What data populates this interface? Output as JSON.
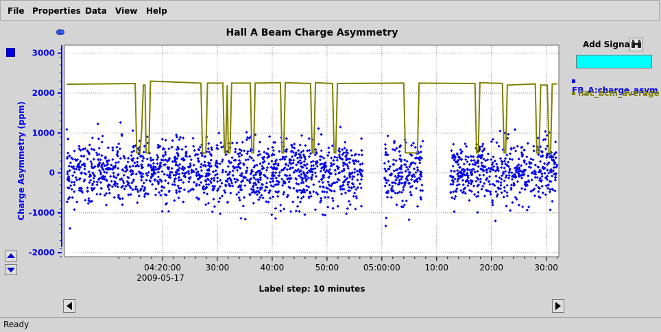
{
  "menu": {
    "file": "File",
    "properties": "Properties",
    "data": "Data",
    "view": "View",
    "help": "Help"
  },
  "chart_data": {
    "type": "scatter",
    "title": "Hall A Beam Charge Asymmetry",
    "xlabel": "Label step: 10 minutes",
    "ylabel": "Charge Asymmetry (ppm)",
    "ylim": [
      -2100,
      3200
    ],
    "xlim": [
      2.1,
      92.3
    ],
    "x_unit": "minutes after 2009-05-17 04:00:00",
    "x_tick_labels": [
      {
        "x": 20,
        "label": "04:20:00",
        "sublabel": "2009-05-17"
      },
      {
        "x": 30,
        "label": "30:00"
      },
      {
        "x": 40,
        "label": "40:00"
      },
      {
        "x": 50,
        "label": "50:00"
      },
      {
        "x": 60,
        "label": "05:00:00"
      },
      {
        "x": 70,
        "label": "10:00"
      },
      {
        "x": 80,
        "label": "20:00"
      },
      {
        "x": 90,
        "label": "30:00"
      }
    ],
    "y_ticks": [
      -2000,
      -1000,
      0,
      1000,
      2000,
      3000
    ],
    "grid": true,
    "series": [
      {
        "name": "FB_A:charge_asym",
        "color": "#0000ee",
        "style": "points",
        "segments": [
          [
            2.5,
            56.5
          ],
          [
            60.5,
            67.5
          ],
          [
            72.5,
            92
          ]
        ],
        "y_mean": 0,
        "y_spread": 400
      },
      {
        "name": "hac_bcm_average",
        "color": "#808000",
        "style": "line",
        "points": [
          [
            2.5,
            2220
          ],
          [
            15.0,
            2240
          ],
          [
            15.3,
            500
          ],
          [
            15.9,
            500
          ],
          [
            16.2,
            1100
          ],
          [
            16.5,
            2200
          ],
          [
            16.8,
            2200
          ],
          [
            17.0,
            500
          ],
          [
            17.5,
            500
          ],
          [
            17.8,
            2300
          ],
          [
            27.0,
            2250
          ],
          [
            27.3,
            500
          ],
          [
            27.9,
            500
          ],
          [
            28.2,
            2250
          ],
          [
            31.0,
            2250
          ],
          [
            31.3,
            500
          ],
          [
            31.5,
            500
          ],
          [
            31.8,
            2200
          ],
          [
            32.0,
            500
          ],
          [
            32.3,
            500
          ],
          [
            32.6,
            2250
          ],
          [
            36.0,
            2250
          ],
          [
            36.3,
            500
          ],
          [
            36.6,
            500
          ],
          [
            36.9,
            2250
          ],
          [
            41.5,
            2260
          ],
          [
            41.8,
            500
          ],
          [
            42.1,
            500
          ],
          [
            42.4,
            2260
          ],
          [
            47.0,
            2240
          ],
          [
            47.3,
            500
          ],
          [
            47.6,
            500
          ],
          [
            47.9,
            2260
          ],
          [
            51.0,
            2240
          ],
          [
            51.3,
            500
          ],
          [
            51.6,
            500
          ],
          [
            51.9,
            2240
          ],
          [
            64.0,
            2250
          ],
          [
            64.3,
            500
          ],
          [
            66.5,
            500
          ],
          [
            66.8,
            2250
          ],
          [
            77.0,
            2240
          ],
          [
            77.3,
            500
          ],
          [
            77.6,
            500
          ],
          [
            77.9,
            2260
          ],
          [
            82.0,
            2240
          ],
          [
            82.3,
            500
          ],
          [
            82.6,
            500
          ],
          [
            82.9,
            2200
          ],
          [
            88.0,
            2230
          ],
          [
            88.3,
            500
          ],
          [
            88.7,
            500
          ],
          [
            89.0,
            2200
          ],
          [
            90.2,
            2200
          ],
          [
            90.5,
            500
          ],
          [
            90.8,
            500
          ],
          [
            91.1,
            2230
          ],
          [
            92.0,
            2230
          ]
        ]
      }
    ],
    "legend_position": "right"
  },
  "controls": {
    "add_signal": "Add Signal",
    "binocular_icon": "binoculars-icon",
    "cyan_color": "#00ffff"
  },
  "status": "Ready"
}
